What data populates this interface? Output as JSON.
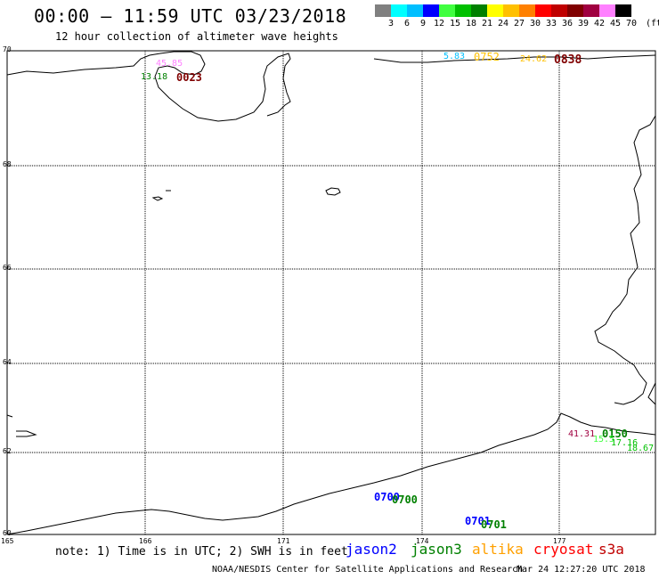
{
  "header": {
    "title": "00:00 – 11:59 UTC 03/23/2018",
    "subtitle": "12 hour collection of altimeter wave heights"
  },
  "legend": {
    "colors": [
      "#808080",
      "#00ffff",
      "#00bfff",
      "#0000ff",
      "#40ff40",
      "#00c000",
      "#008000",
      "#ffff00",
      "#ffc000",
      "#ff8000",
      "#ff0000",
      "#c00000",
      "#800000",
      "#a00040",
      "#ff80ff",
      "#000000"
    ],
    "labels": [
      "3",
      "6",
      "9",
      "12",
      "15",
      "18",
      "21",
      "24",
      "27",
      "30",
      "33",
      "36",
      "39",
      "42",
      "45",
      "70",
      "(ft)"
    ]
  },
  "axes": {
    "y_labels": [
      "70",
      "68",
      "66",
      "64",
      "62",
      "60"
    ],
    "x_labels": [
      "165",
      "166",
      "171",
      "174",
      "177"
    ]
  },
  "annotations": [
    {
      "text": "45.85",
      "color": "#ff80ff"
    },
    {
      "text": "13.18",
      "color": "#008000"
    },
    {
      "text": "0023",
      "color": "#800000"
    },
    {
      "text": "5.83",
      "color": "#00bfff"
    },
    {
      "text": "0752",
      "color": "#ffc000"
    },
    {
      "text": "24.62",
      "color": "#ffc000"
    },
    {
      "text": "0838",
      "color": "#800000"
    },
    {
      "text": "41.31",
      "color": "#a00040"
    },
    {
      "text": "0150",
      "color": "#008000"
    },
    {
      "text": "15.5",
      "color": "#40ff40"
    },
    {
      "text": "17.16",
      "color": "#00c000"
    },
    {
      "text": "18.67",
      "color": "#00c000"
    },
    {
      "text": "0700",
      "color": "#0000ff"
    },
    {
      "text": "0700",
      "color": "#008000"
    },
    {
      "text": "0701",
      "color": "#0000ff"
    },
    {
      "text": "0701",
      "color": "#008000"
    }
  ],
  "note": "note: 1) Time is in UTC; 2) SWH is in feet",
  "satellites": [
    {
      "name": "jason2",
      "color": "#0000ff"
    },
    {
      "name": "jason3",
      "color": "#008000"
    },
    {
      "name": "altika",
      "color": "#ffa000"
    },
    {
      "name": "cryosat",
      "color": "#ff0000"
    },
    {
      "name": "s3a",
      "color": "#c00000"
    }
  ],
  "footer": {
    "left": "NOAA/NESDIS Center for Satellite Applications and Research",
    "right": "Mar 24 12:27:20 UTC 2018"
  }
}
